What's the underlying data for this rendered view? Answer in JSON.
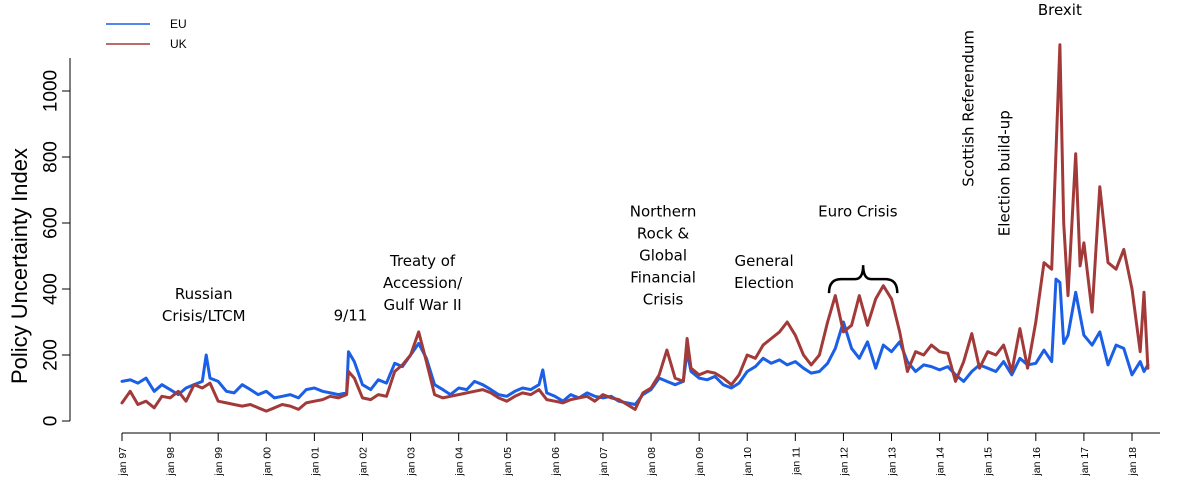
{
  "chart_data": {
    "type": "line",
    "ylabel": "Policy Uncertainty Index",
    "xlabel": "",
    "ylim": [
      0,
      1150
    ],
    "yticks": [
      0,
      200,
      400,
      600,
      800,
      1000
    ],
    "x_range": [
      1997.0,
      2018.33
    ],
    "xticks": [
      {
        "x": 1997,
        "label": "jan 97"
      },
      {
        "x": 1998,
        "label": "jan 98"
      },
      {
        "x": 1999,
        "label": "jan 99"
      },
      {
        "x": 2000,
        "label": "jan 00"
      },
      {
        "x": 2001,
        "label": "jan 01"
      },
      {
        "x": 2002,
        "label": "jan 02"
      },
      {
        "x": 2003,
        "label": "jan 03"
      },
      {
        "x": 2004,
        "label": "jan 04"
      },
      {
        "x": 2005,
        "label": "jan 05"
      },
      {
        "x": 2006,
        "label": "jan 06"
      },
      {
        "x": 2007,
        "label": "jan 07"
      },
      {
        "x": 2008,
        "label": "jan 08"
      },
      {
        "x": 2009,
        "label": "jan 09"
      },
      {
        "x": 2010,
        "label": "jan 10"
      },
      {
        "x": 2011,
        "label": "jan 11"
      },
      {
        "x": 2012,
        "label": "jan 12"
      },
      {
        "x": 2013,
        "label": "jan 13"
      },
      {
        "x": 2014,
        "label": "jan 14"
      },
      {
        "x": 2015,
        "label": "jan 15"
      },
      {
        "x": 2016,
        "label": "jan 16"
      },
      {
        "x": 2017,
        "label": "jan 17"
      },
      {
        "x": 2018,
        "label": "jan 18"
      }
    ],
    "legend": {
      "position": "top-left",
      "entries": [
        "EU",
        "UK"
      ]
    },
    "grid": false,
    "series": [
      {
        "name": "EU",
        "color": "#1a5fe6",
        "points": [
          [
            1997.0,
            120
          ],
          [
            1997.17,
            125
          ],
          [
            1997.33,
            115
          ],
          [
            1997.5,
            130
          ],
          [
            1997.67,
            90
          ],
          [
            1997.83,
            110
          ],
          [
            1998.0,
            95
          ],
          [
            1998.17,
            80
          ],
          [
            1998.33,
            100
          ],
          [
            1998.5,
            110
          ],
          [
            1998.67,
            120
          ],
          [
            1998.75,
            200
          ],
          [
            1998.83,
            130
          ],
          [
            1999.0,
            120
          ],
          [
            1999.17,
            90
          ],
          [
            1999.33,
            85
          ],
          [
            1999.5,
            110
          ],
          [
            1999.67,
            95
          ],
          [
            1999.83,
            80
          ],
          [
            2000.0,
            90
          ],
          [
            2000.17,
            70
          ],
          [
            2000.33,
            75
          ],
          [
            2000.5,
            80
          ],
          [
            2000.67,
            70
          ],
          [
            2000.83,
            95
          ],
          [
            2001.0,
            100
          ],
          [
            2001.17,
            90
          ],
          [
            2001.33,
            85
          ],
          [
            2001.5,
            80
          ],
          [
            2001.67,
            85
          ],
          [
            2001.71,
            210
          ],
          [
            2001.83,
            180
          ],
          [
            2002.0,
            110
          ],
          [
            2002.17,
            95
          ],
          [
            2002.33,
            125
          ],
          [
            2002.5,
            115
          ],
          [
            2002.67,
            175
          ],
          [
            2002.83,
            165
          ],
          [
            2003.0,
            200
          ],
          [
            2003.17,
            235
          ],
          [
            2003.33,
            190
          ],
          [
            2003.5,
            110
          ],
          [
            2003.67,
            95
          ],
          [
            2003.83,
            80
          ],
          [
            2004.0,
            100
          ],
          [
            2004.17,
            95
          ],
          [
            2004.33,
            120
          ],
          [
            2004.5,
            110
          ],
          [
            2004.67,
            95
          ],
          [
            2004.83,
            80
          ],
          [
            2005.0,
            75
          ],
          [
            2005.17,
            90
          ],
          [
            2005.33,
            100
          ],
          [
            2005.5,
            95
          ],
          [
            2005.67,
            110
          ],
          [
            2005.75,
            155
          ],
          [
            2005.83,
            85
          ],
          [
            2006.0,
            75
          ],
          [
            2006.17,
            60
          ],
          [
            2006.33,
            80
          ],
          [
            2006.5,
            70
          ],
          [
            2006.67,
            85
          ],
          [
            2006.83,
            75
          ],
          [
            2007.0,
            70
          ],
          [
            2007.17,
            75
          ],
          [
            2007.33,
            60
          ],
          [
            2007.5,
            55
          ],
          [
            2007.67,
            50
          ],
          [
            2007.83,
            80
          ],
          [
            2008.0,
            95
          ],
          [
            2008.17,
            130
          ],
          [
            2008.33,
            120
          ],
          [
            2008.5,
            110
          ],
          [
            2008.67,
            120
          ],
          [
            2008.75,
            210
          ],
          [
            2008.83,
            150
          ],
          [
            2009.0,
            130
          ],
          [
            2009.17,
            125
          ],
          [
            2009.33,
            135
          ],
          [
            2009.5,
            110
          ],
          [
            2009.67,
            100
          ],
          [
            2009.83,
            115
          ],
          [
            2010.0,
            150
          ],
          [
            2010.17,
            165
          ],
          [
            2010.33,
            190
          ],
          [
            2010.5,
            175
          ],
          [
            2010.67,
            185
          ],
          [
            2010.83,
            170
          ],
          [
            2011.0,
            180
          ],
          [
            2011.17,
            160
          ],
          [
            2011.33,
            145
          ],
          [
            2011.5,
            150
          ],
          [
            2011.67,
            175
          ],
          [
            2011.83,
            220
          ],
          [
            2012.0,
            300
          ],
          [
            2012.17,
            220
          ],
          [
            2012.33,
            190
          ],
          [
            2012.5,
            240
          ],
          [
            2012.67,
            160
          ],
          [
            2012.83,
            230
          ],
          [
            2013.0,
            210
          ],
          [
            2013.17,
            240
          ],
          [
            2013.33,
            180
          ],
          [
            2013.5,
            150
          ],
          [
            2013.67,
            170
          ],
          [
            2013.83,
            165
          ],
          [
            2014.0,
            155
          ],
          [
            2014.17,
            165
          ],
          [
            2014.33,
            140
          ],
          [
            2014.5,
            120
          ],
          [
            2014.67,
            150
          ],
          [
            2014.83,
            170
          ],
          [
            2015.0,
            160
          ],
          [
            2015.17,
            150
          ],
          [
            2015.33,
            180
          ],
          [
            2015.5,
            140
          ],
          [
            2015.67,
            190
          ],
          [
            2015.83,
            170
          ],
          [
            2016.0,
            175
          ],
          [
            2016.17,
            215
          ],
          [
            2016.33,
            180
          ],
          [
            2016.42,
            430
          ],
          [
            2016.5,
            420
          ],
          [
            2016.58,
            235
          ],
          [
            2016.67,
            260
          ],
          [
            2016.83,
            390
          ],
          [
            2017.0,
            260
          ],
          [
            2017.17,
            230
          ],
          [
            2017.33,
            270
          ],
          [
            2017.5,
            170
          ],
          [
            2017.67,
            230
          ],
          [
            2017.83,
            220
          ],
          [
            2018.0,
            140
          ],
          [
            2018.17,
            180
          ],
          [
            2018.25,
            150
          ],
          [
            2018.33,
            170
          ]
        ]
      },
      {
        "name": "UK",
        "color": "#a33a3a",
        "points": [
          [
            1997.0,
            55
          ],
          [
            1997.17,
            90
          ],
          [
            1997.33,
            50
          ],
          [
            1997.5,
            60
          ],
          [
            1997.67,
            40
          ],
          [
            1997.83,
            75
          ],
          [
            1998.0,
            70
          ],
          [
            1998.17,
            90
          ],
          [
            1998.33,
            60
          ],
          [
            1998.5,
            110
          ],
          [
            1998.67,
            100
          ],
          [
            1998.83,
            115
          ],
          [
            1999.0,
            60
          ],
          [
            1999.17,
            55
          ],
          [
            1999.33,
            50
          ],
          [
            1999.5,
            45
          ],
          [
            1999.67,
            50
          ],
          [
            1999.83,
            40
          ],
          [
            2000.0,
            30
          ],
          [
            2000.17,
            40
          ],
          [
            2000.33,
            50
          ],
          [
            2000.5,
            45
          ],
          [
            2000.67,
            35
          ],
          [
            2000.83,
            55
          ],
          [
            2001.0,
            60
          ],
          [
            2001.17,
            65
          ],
          [
            2001.33,
            75
          ],
          [
            2001.5,
            70
          ],
          [
            2001.67,
            80
          ],
          [
            2001.71,
            150
          ],
          [
            2001.83,
            130
          ],
          [
            2002.0,
            70
          ],
          [
            2002.17,
            65
          ],
          [
            2002.33,
            80
          ],
          [
            2002.5,
            75
          ],
          [
            2002.67,
            150
          ],
          [
            2002.83,
            170
          ],
          [
            2003.0,
            200
          ],
          [
            2003.17,
            270
          ],
          [
            2003.33,
            180
          ],
          [
            2003.5,
            80
          ],
          [
            2003.67,
            70
          ],
          [
            2003.83,
            75
          ],
          [
            2004.0,
            80
          ],
          [
            2004.17,
            85
          ],
          [
            2004.33,
            90
          ],
          [
            2004.5,
            95
          ],
          [
            2004.67,
            85
          ],
          [
            2004.83,
            70
          ],
          [
            2005.0,
            60
          ],
          [
            2005.17,
            75
          ],
          [
            2005.33,
            85
          ],
          [
            2005.5,
            80
          ],
          [
            2005.67,
            95
          ],
          [
            2005.83,
            65
          ],
          [
            2006.0,
            60
          ],
          [
            2006.17,
            55
          ],
          [
            2006.33,
            65
          ],
          [
            2006.5,
            70
          ],
          [
            2006.67,
            75
          ],
          [
            2006.83,
            60
          ],
          [
            2007.0,
            80
          ],
          [
            2007.17,
            70
          ],
          [
            2007.33,
            65
          ],
          [
            2007.5,
            50
          ],
          [
            2007.67,
            35
          ],
          [
            2007.83,
            85
          ],
          [
            2008.0,
            100
          ],
          [
            2008.17,
            140
          ],
          [
            2008.33,
            215
          ],
          [
            2008.5,
            130
          ],
          [
            2008.67,
            120
          ],
          [
            2008.75,
            250
          ],
          [
            2008.83,
            160
          ],
          [
            2009.0,
            140
          ],
          [
            2009.17,
            150
          ],
          [
            2009.33,
            145
          ],
          [
            2009.5,
            130
          ],
          [
            2009.67,
            110
          ],
          [
            2009.83,
            140
          ],
          [
            2010.0,
            200
          ],
          [
            2010.17,
            190
          ],
          [
            2010.33,
            230
          ],
          [
            2010.5,
            250
          ],
          [
            2010.67,
            270
          ],
          [
            2010.83,
            300
          ],
          [
            2011.0,
            260
          ],
          [
            2011.17,
            200
          ],
          [
            2011.33,
            170
          ],
          [
            2011.5,
            200
          ],
          [
            2011.67,
            300
          ],
          [
            2011.83,
            380
          ],
          [
            2012.0,
            270
          ],
          [
            2012.17,
            290
          ],
          [
            2012.33,
            380
          ],
          [
            2012.5,
            290
          ],
          [
            2012.67,
            370
          ],
          [
            2012.83,
            410
          ],
          [
            2013.0,
            370
          ],
          [
            2013.17,
            270
          ],
          [
            2013.33,
            150
          ],
          [
            2013.5,
            210
          ],
          [
            2013.67,
            200
          ],
          [
            2013.83,
            230
          ],
          [
            2014.0,
            210
          ],
          [
            2014.17,
            205
          ],
          [
            2014.33,
            120
          ],
          [
            2014.5,
            180
          ],
          [
            2014.67,
            265
          ],
          [
            2014.83,
            160
          ],
          [
            2015.0,
            210
          ],
          [
            2015.17,
            200
          ],
          [
            2015.33,
            230
          ],
          [
            2015.5,
            150
          ],
          [
            2015.67,
            280
          ],
          [
            2015.83,
            160
          ],
          [
            2016.0,
            300
          ],
          [
            2016.17,
            480
          ],
          [
            2016.33,
            460
          ],
          [
            2016.5,
            1140
          ],
          [
            2016.58,
            600
          ],
          [
            2016.67,
            380
          ],
          [
            2016.83,
            810
          ],
          [
            2016.92,
            470
          ],
          [
            2017.0,
            540
          ],
          [
            2017.17,
            330
          ],
          [
            2017.33,
            710
          ],
          [
            2017.5,
            480
          ],
          [
            2017.67,
            460
          ],
          [
            2017.83,
            520
          ],
          [
            2018.0,
            400
          ],
          [
            2018.17,
            210
          ],
          [
            2018.25,
            390
          ],
          [
            2018.33,
            160
          ]
        ]
      }
    ],
    "annotations": [
      {
        "lines": [
          "Russian",
          "Crisis/LTCM"
        ],
        "x": 1998.7,
        "y": 370
      },
      {
        "lines": [
          "9/11"
        ],
        "x": 2001.75,
        "y": 305
      },
      {
        "lines": [
          "Treaty of",
          "Accession/",
          "Gulf War II"
        ],
        "x": 2003.25,
        "y": 470
      },
      {
        "lines": [
          "Northern",
          "Rock &",
          "Global",
          "Financial",
          "Crisis"
        ],
        "x": 2008.25,
        "y": 620
      },
      {
        "lines": [
          "General",
          "Election"
        ],
        "x": 2010.35,
        "y": 470
      },
      {
        "lines": [
          "Euro Crisis"
        ],
        "x": 2012.3,
        "y": 620
      },
      {
        "lines": [
          "Brexit"
        ],
        "x": 2016.5,
        "y": 1230
      },
      {
        "lines": [
          "Scottish Referendum"
        ],
        "x": 2014.6,
        "y": 710,
        "rotate": true
      },
      {
        "lines": [
          "Election build-up"
        ],
        "x": 2015.35,
        "y": 560,
        "rotate": true
      }
    ],
    "brace": {
      "x_start": 2011.7,
      "x_end": 2013.12,
      "y": 430
    }
  }
}
